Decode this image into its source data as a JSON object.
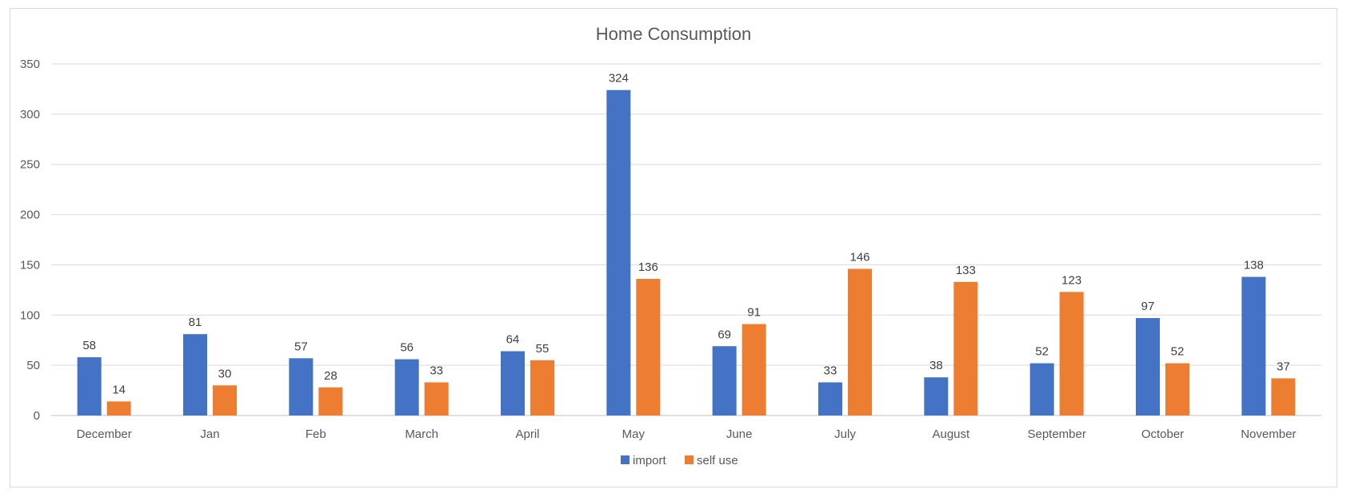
{
  "chart_data": {
    "type": "bar",
    "title": "Home Consumption",
    "categories": [
      "December",
      "Jan",
      "Feb",
      "March",
      "April",
      "May",
      "June",
      "July",
      "August",
      "September",
      "October",
      "November"
    ],
    "series": [
      {
        "name": "import",
        "values": [
          58,
          81,
          57,
          56,
          64,
          324,
          69,
          33,
          38,
          52,
          97,
          138
        ],
        "color": "#4472C4"
      },
      {
        "name": "self use",
        "values": [
          14,
          30,
          28,
          33,
          55,
          136,
          91,
          146,
          133,
          123,
          52,
          37
        ],
        "color": "#ED7D31"
      }
    ],
    "ylim": [
      0,
      350
    ],
    "yticks": [
      0,
      50,
      100,
      150,
      200,
      250,
      300,
      350
    ],
    "grid": true,
    "legend_position": "bottom",
    "gridline_color": "#d9d9d9",
    "axis_color": "#bfbfbf"
  }
}
